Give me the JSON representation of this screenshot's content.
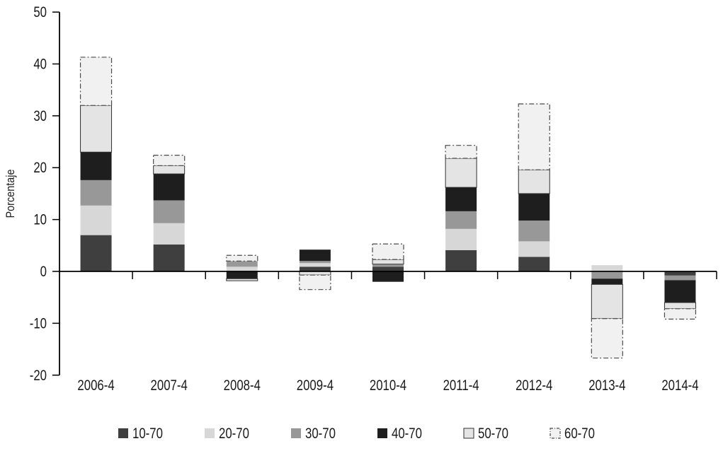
{
  "chart_data": {
    "type": "bar",
    "stacked": true,
    "title": "",
    "xlabel": "",
    "ylabel": "Porcentaje",
    "ylim": [
      -20,
      50
    ],
    "yticks": [
      50,
      40,
      30,
      20,
      10,
      0,
      -10,
      -20
    ],
    "grid": false,
    "legend_position": "bottom",
    "categories": [
      "2006-4",
      "2007-4",
      "2008-4",
      "2009-4",
      "2010-4",
      "2011-4",
      "2012-4",
      "2013-4",
      "2014-4"
    ],
    "series": [
      {
        "name": "10-70",
        "color": "#3f3f3f",
        "border": "none",
        "values": [
          7.0,
          5.2,
          0,
          0.9,
          0.9,
          4.1,
          2.8,
          0,
          -0.8
        ]
      },
      {
        "name": "20-70",
        "color": "#d7d7d7",
        "border": "none",
        "values": [
          5.7,
          4.1,
          0.9,
          0.7,
          0,
          4.1,
          3.0,
          1.2,
          0
        ]
      },
      {
        "name": "30-70",
        "color": "#989898",
        "border": "none",
        "values": [
          4.9,
          4.4,
          1.1,
          0.4,
          0.5,
          3.4,
          4.0,
          -1.4,
          -0.9
        ]
      },
      {
        "name": "40-70",
        "color": "#1e1e1e",
        "border": "none",
        "values": [
          5.4,
          5.1,
          -1.4,
          2.2,
          -2.0,
          4.6,
          5.2,
          -1.1,
          -4.3
        ]
      },
      {
        "name": "50-70",
        "color": "#e4e4e4",
        "border": "solid",
        "values": [
          9.0,
          1.6,
          -0.4,
          -0.7,
          0.9,
          5.6,
          4.6,
          -6.6,
          -1.2
        ]
      },
      {
        "name": "60-70",
        "color": "#f1f1f1",
        "border": "dashed",
        "values": [
          9.3,
          2.0,
          1.1,
          -2.8,
          3.0,
          2.5,
          12.7,
          -7.6,
          -2.0
        ]
      }
    ]
  }
}
